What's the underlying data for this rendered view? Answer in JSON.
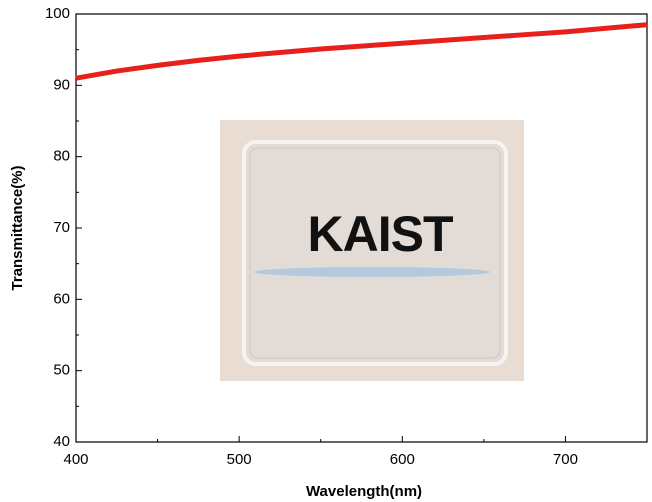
{
  "chart_data": {
    "type": "line",
    "xlabel": "Wavelength(nm)",
    "ylabel": "Transmittance(%)",
    "x": [
      400,
      425,
      450,
      475,
      500,
      525,
      550,
      575,
      600,
      625,
      650,
      675,
      700,
      725,
      750
    ],
    "series": [
      {
        "color": "#e8201c",
        "values": [
          91.0,
          92.0,
          92.8,
          93.5,
          94.1,
          94.6,
          95.1,
          95.5,
          95.9,
          96.3,
          96.7,
          97.1,
          97.5,
          98.0,
          98.5
        ]
      }
    ],
    "xlim": [
      400,
      750
    ],
    "ylim": [
      40,
      100
    ],
    "xticks": [
      400,
      500,
      600,
      700
    ],
    "yticks": [
      40,
      50,
      60,
      70,
      80,
      90,
      100
    ],
    "xminorticks": [
      450,
      550,
      650,
      750
    ],
    "yminorticks": [
      45,
      55,
      65,
      75,
      85,
      95
    ],
    "annotations": [
      "KAIST"
    ]
  }
}
